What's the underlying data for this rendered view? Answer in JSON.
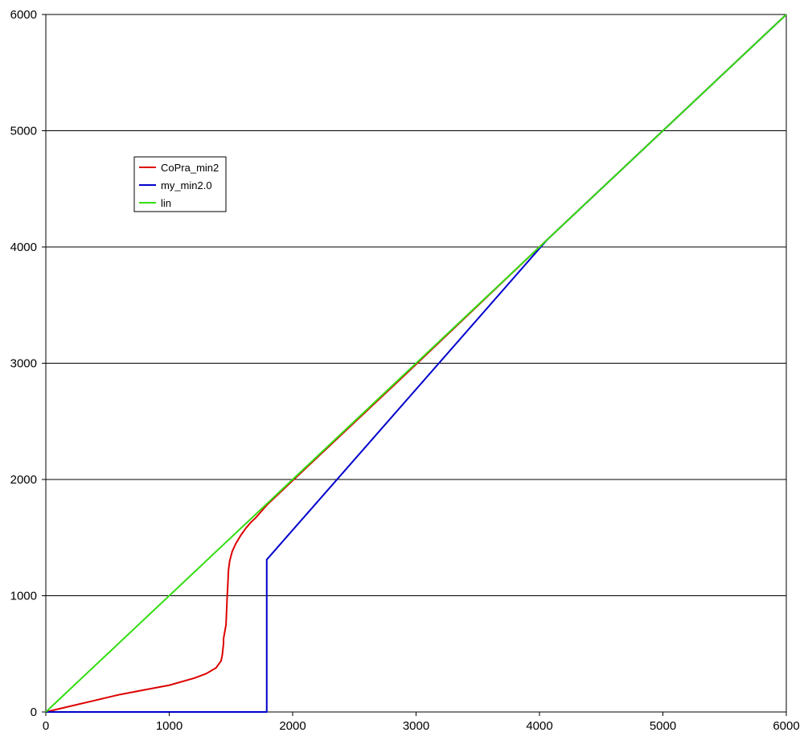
{
  "chart_data": {
    "type": "line",
    "title": "",
    "xlabel": "",
    "ylabel": "",
    "xlim": [
      0,
      6000
    ],
    "ylim": [
      0,
      6000
    ],
    "xticks": [
      "0",
      "1000",
      "2000",
      "3000",
      "4000",
      "5000",
      "6000"
    ],
    "yticks": [
      "0",
      "1000",
      "2000",
      "3000",
      "4000",
      "5000",
      "6000"
    ],
    "grid": "horizontal",
    "legend_placement": "upper-left",
    "series": [
      {
        "name": "CoPra_min2",
        "color": "#dd0000",
        "x": [
          0,
          200,
          400,
          600,
          800,
          1000,
          1200,
          1300,
          1380,
          1420,
          1430,
          1440,
          1440,
          1460,
          1470,
          1475,
          1480,
          1490,
          1510,
          1540,
          1580,
          1620,
          1660,
          1700,
          1750,
          1800,
          2000,
          3000,
          4000,
          5000,
          6000
        ],
        "y": [
          0,
          50,
          100,
          150,
          190,
          230,
          290,
          330,
          380,
          440,
          490,
          590,
          630,
          750,
          1000,
          1100,
          1220,
          1300,
          1380,
          1450,
          1520,
          1580,
          1630,
          1670,
          1730,
          1790,
          1990,
          2990,
          4000,
          5000,
          6000
        ]
      },
      {
        "name": "my_min2.0",
        "color": "#0000cc",
        "x": [
          0,
          1790,
          1790,
          4060,
          6000
        ],
        "y": [
          0,
          0,
          1310,
          4060,
          6000
        ]
      },
      {
        "name": "lin",
        "color": "#33dd11",
        "x": [
          0,
          6000
        ],
        "y": [
          0,
          6000
        ]
      }
    ]
  }
}
